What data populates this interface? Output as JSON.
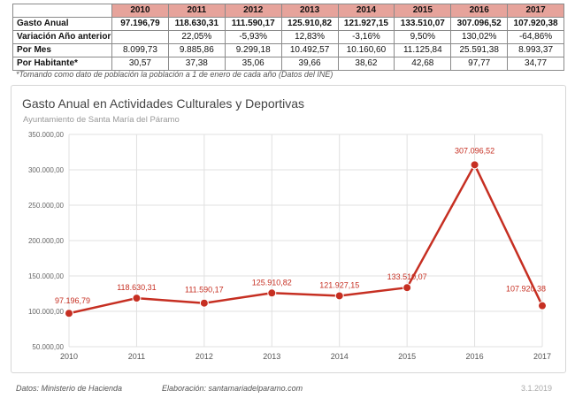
{
  "table": {
    "years": [
      "2010",
      "2011",
      "2012",
      "2013",
      "2014",
      "2015",
      "2016",
      "2017"
    ],
    "rows": [
      {
        "label": "Gasto Anual",
        "bold": true,
        "values": [
          "97.196,79",
          "118.630,31",
          "111.590,17",
          "125.910,82",
          "121.927,15",
          "133.510,07",
          "307.096,52",
          "107.920,38"
        ]
      },
      {
        "label": "Variación Año anterior",
        "bold": false,
        "values": [
          "",
          "22,05%",
          "-5,93%",
          "12,83%",
          "-3,16%",
          "9,50%",
          "130,02%",
          "-64,86%"
        ]
      },
      {
        "label": "Por Mes",
        "bold": false,
        "values": [
          "8.099,73",
          "9.885,86",
          "9.299,18",
          "10.492,57",
          "10.160,60",
          "11.125,84",
          "25.591,38",
          "8.993,37"
        ]
      },
      {
        "label": "Por Habitante*",
        "bold": false,
        "values": [
          "30,57",
          "37,38",
          "35,06",
          "39,66",
          "38,62",
          "42,68",
          "97,77",
          "34,77"
        ]
      }
    ]
  },
  "footnote": "*Tomando como dato de población la población a 1 de enero de cada año (Datos del INE)",
  "footer": {
    "source": "Datos: Ministerio de Hacienda",
    "elaboration": "Elaboración: santamariadelparamo.com",
    "date": "3.1.2019"
  },
  "colors": {
    "series": "#c62f22",
    "header_bg": "#e6a39b",
    "grid": "#e0e0e0"
  },
  "chart_data": {
    "type": "line",
    "title": "Gasto Anual en Actividades Culturales y Deportivas",
    "subtitle": "Ayuntamiento de Santa María del Páramo",
    "xlabel": "",
    "ylabel": "",
    "x": [
      "2010",
      "2011",
      "2012",
      "2013",
      "2014",
      "2015",
      "2016",
      "2017"
    ],
    "values": [
      97196.79,
      118630.31,
      111590.17,
      125910.82,
      121927.15,
      133510.07,
      307096.52,
      107920.38
    ],
    "data_labels": [
      "97.196,79",
      "118.630,31",
      "111.590,17",
      "125.910,82",
      "121.927,15",
      "133.510,07",
      "307.096,52",
      "107.920,38"
    ],
    "ylim": [
      50000,
      350000
    ],
    "yticks": [
      50000,
      100000,
      150000,
      200000,
      250000,
      300000,
      350000
    ],
    "ytick_labels": [
      "50.000,00",
      "100.000,00",
      "150.000,00",
      "200.000,00",
      "250.000,00",
      "300.000,00",
      "350.000,00"
    ],
    "grid": true,
    "legend": "none"
  }
}
